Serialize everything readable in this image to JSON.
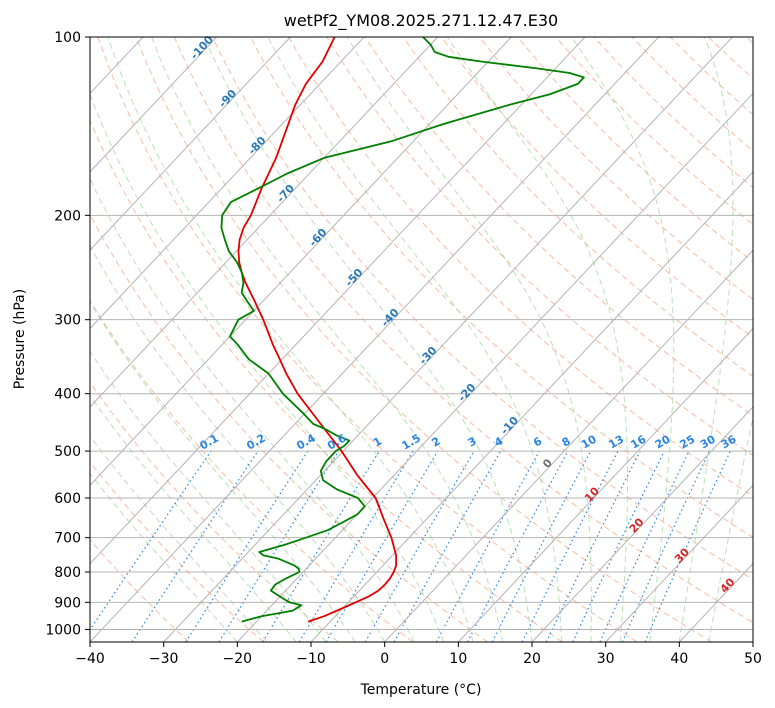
{
  "chart_data": {
    "type": "line",
    "subtype": "skew-T log-p diagram",
    "title": "wetPf2_YM08.2025.271.12.47.E30",
    "xlabel": "Temperature (°C)",
    "ylabel": "Pressure (hPa)",
    "xlim": [
      -40,
      50
    ],
    "ylim": [
      1050,
      100
    ],
    "yscale": "log",
    "grid": true,
    "x_ticks": [
      -40,
      -30,
      -20,
      -10,
      0,
      10,
      20,
      30,
      40,
      50
    ],
    "y_ticks": [
      100,
      200,
      300,
      400,
      500,
      600,
      700,
      800,
      900,
      1000
    ],
    "x_tick_labels": [
      "−40",
      "−30",
      "−20",
      "−10",
      "0",
      "10",
      "20",
      "30",
      "40",
      "50"
    ],
    "y_tick_labels": [
      "100",
      "200",
      "300",
      "400",
      "500",
      "600",
      "700",
      "800",
      "900",
      "1000"
    ],
    "series": [
      {
        "color": "#e00000",
        "pressure": [
          970,
          950,
          920,
          900,
          880,
          860,
          840,
          820,
          800,
          780,
          750,
          700,
          650,
          600,
          550,
          500,
          450,
          400,
          370,
          350,
          330,
          300,
          280,
          260,
          250,
          240,
          230,
          220,
          210,
          200,
          180,
          160,
          140,
          130,
          120,
          110,
          100
        ],
        "temperature": [
          -13,
          -11.5,
          -10,
          -9,
          -8,
          -7.4,
          -7.3,
          -7.4,
          -7.7,
          -8.2,
          -9.5,
          -12.4,
          -15.9,
          -19.6,
          -24.9,
          -30.2,
          -36.5,
          -43.5,
          -47.6,
          -50.3,
          -53.2,
          -57.6,
          -61,
          -64.7,
          -66.5,
          -68.2,
          -69.7,
          -71,
          -72,
          -72.6,
          -74.6,
          -76.5,
          -79.2,
          -80.7,
          -81.9,
          -82.5,
          -84
        ]
      },
      {
        "color": "#008000",
        "pressure": [
          970,
          950,
          930,
          910,
          900,
          880,
          860,
          840,
          820,
          800,
          790,
          780,
          770,
          760,
          750,
          740,
          720,
          700,
          680,
          660,
          650,
          640,
          620,
          600,
          580,
          560,
          540,
          520,
          500,
          490,
          480,
          470,
          460,
          450,
          430,
          400,
          370,
          350,
          330,
          320,
          300,
          290,
          280,
          270,
          260,
          250,
          240,
          230,
          220,
          210,
          200,
          190,
          180,
          170,
          160,
          150,
          140,
          130,
          125,
          120,
          117,
          115,
          113,
          110,
          108,
          106,
          103,
          100
        ],
        "temperature": [
          -22,
          -20,
          -16.5,
          -16,
          -18,
          -20,
          -22,
          -22.2,
          -21.5,
          -20.5,
          -21,
          -22,
          -23.5,
          -25,
          -27.5,
          -28.5,
          -26,
          -24,
          -22,
          -21,
          -20.5,
          -20,
          -20,
          -22,
          -26,
          -29,
          -30.5,
          -31,
          -31,
          -30.5,
          -30.5,
          -33,
          -35,
          -37.5,
          -40.5,
          -45.5,
          -50,
          -54.5,
          -58,
          -60,
          -61,
          -60,
          -62,
          -64,
          -65,
          -66.5,
          -68.5,
          -71,
          -73,
          -75,
          -76.5,
          -77,
          -75,
          -73,
          -70,
          -63,
          -58,
          -51.5,
          -47.5,
          -45,
          -45,
          -47.5,
          -52.5,
          -61,
          -66,
          -68.5,
          -70,
          -72
        ]
      }
    ],
    "isotherm_labels": [
      "-100",
      "-90",
      "-80",
      "-70",
      "-60",
      "-50",
      "-40",
      "-30",
      "-20",
      "-10"
    ],
    "mixing_ratio_labels": [
      "0.1",
      "0.2",
      "0.4",
      "0.6",
      "1",
      "1.5",
      "2",
      "3",
      "4",
      "6",
      "8",
      "10",
      "13",
      "16",
      "20",
      "25",
      "30",
      "36"
    ],
    "isotherm_labels_warm": [
      "0",
      "10",
      "20",
      "30",
      "40"
    ]
  }
}
